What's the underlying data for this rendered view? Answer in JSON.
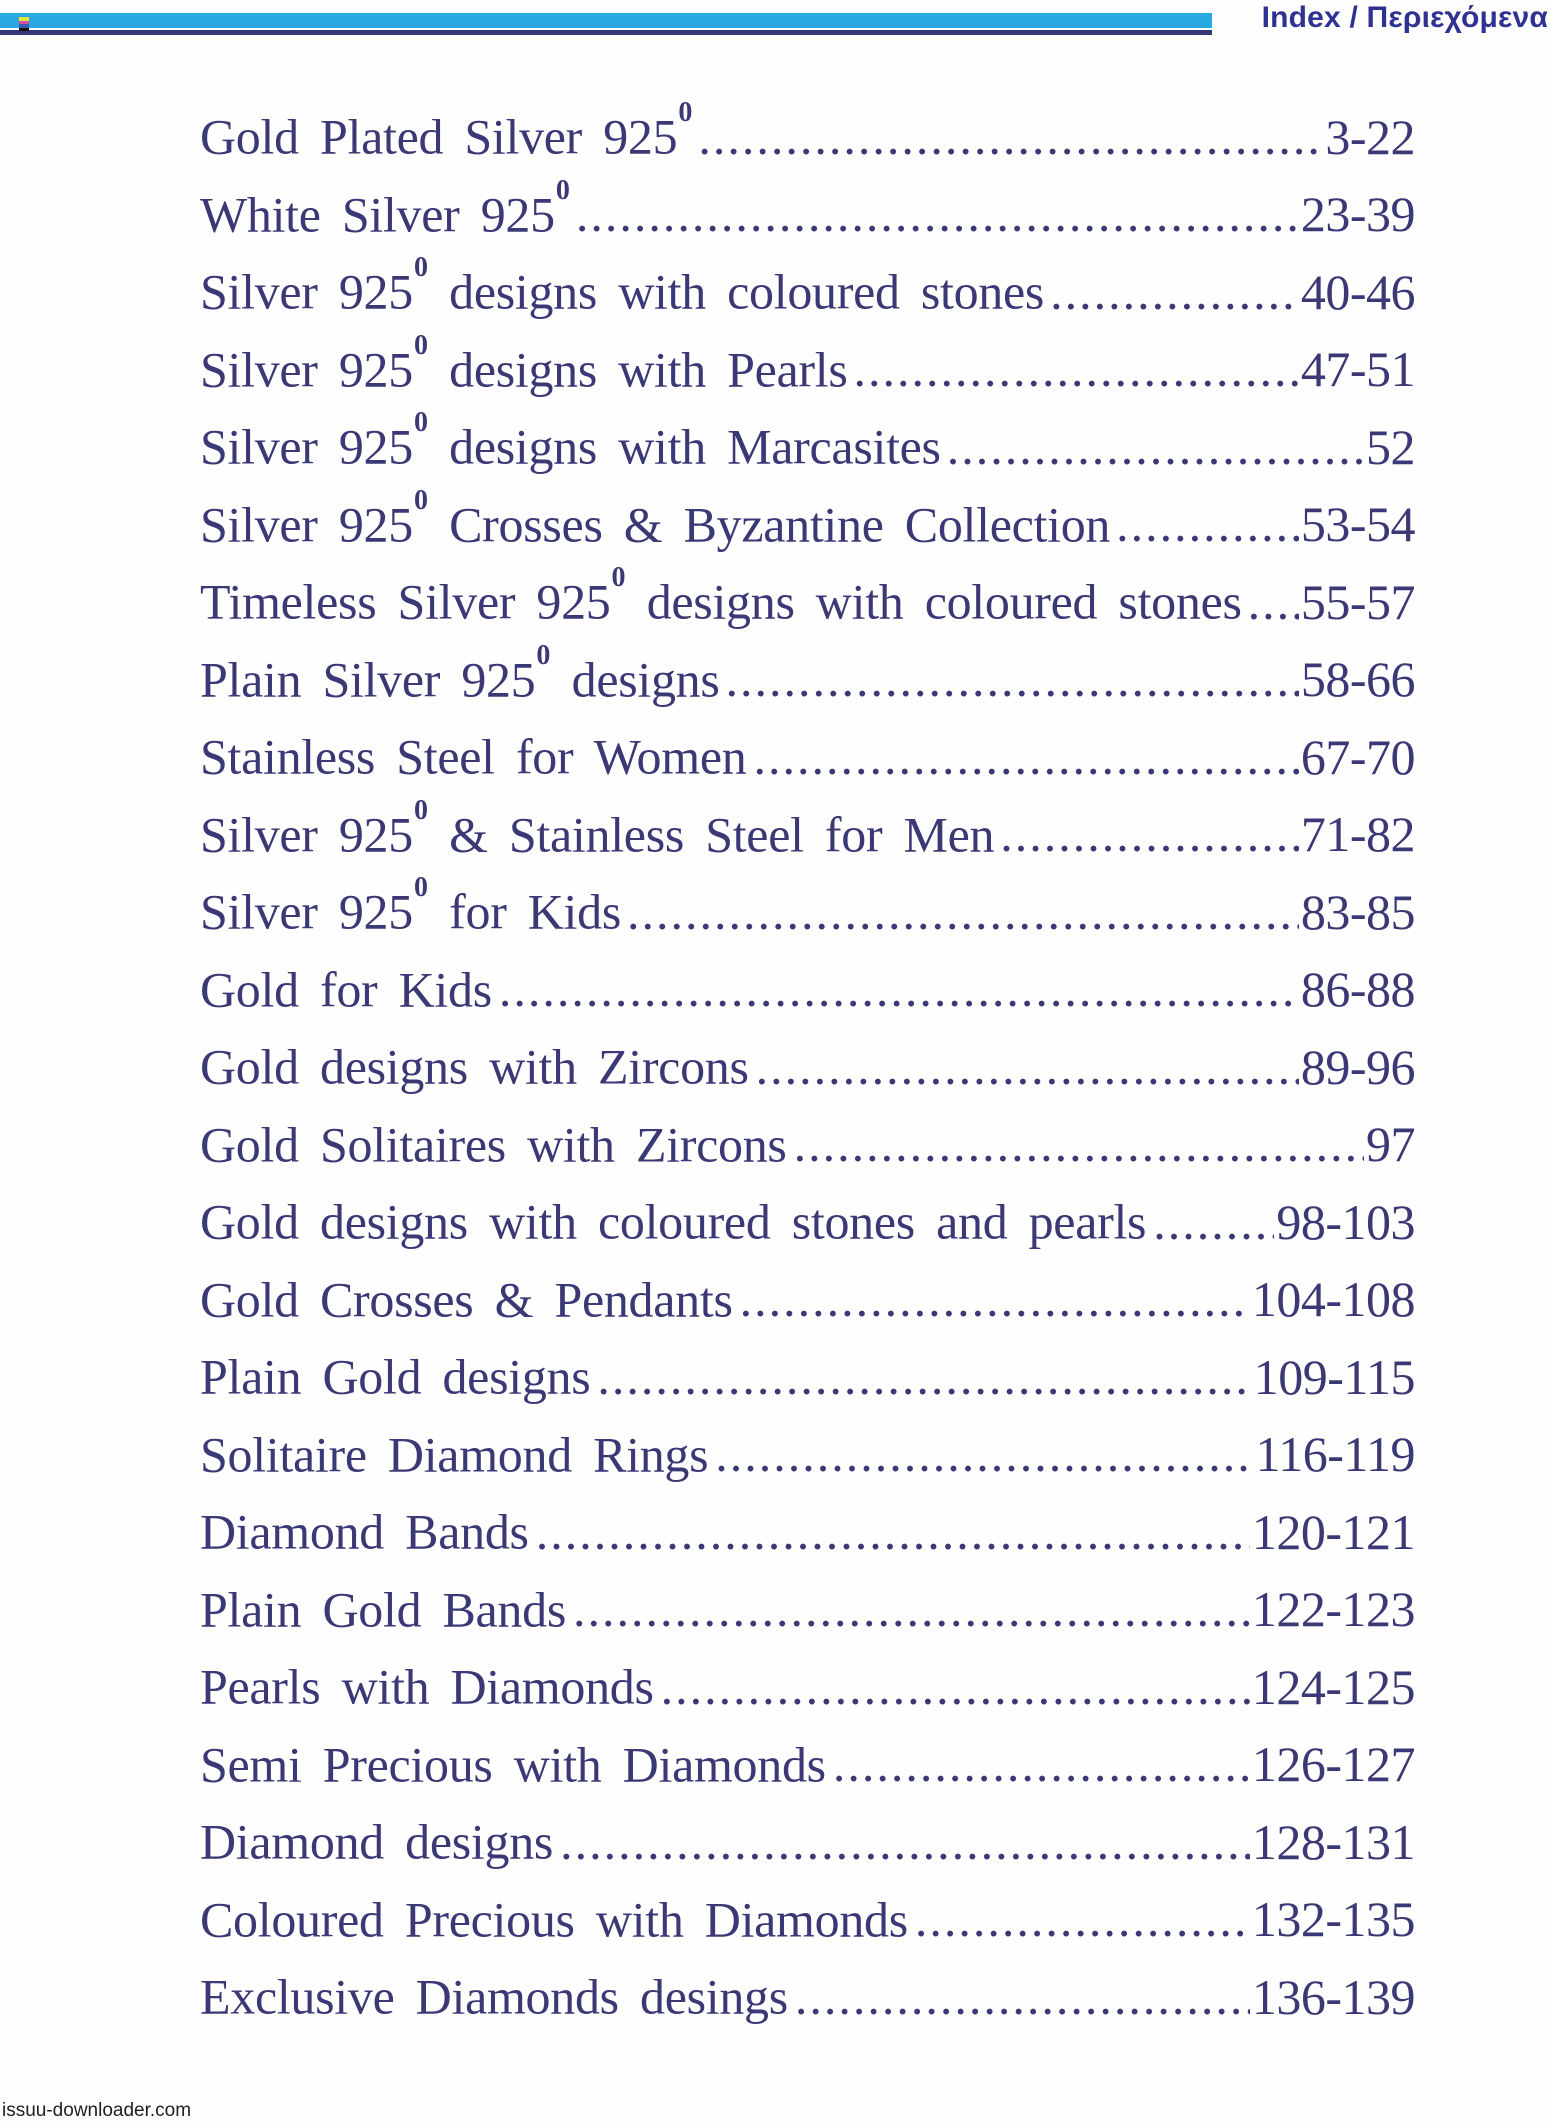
{
  "header": {
    "title": "Index / Περιεχόμενα"
  },
  "colors": {
    "cyan_bar": "#29a9e0",
    "navy_bar": "#333878",
    "title_text": "#2f3292",
    "toc_text": "#3a3875"
  },
  "registration_mark": {
    "name": "color-registration-mark",
    "stripe_colors": [
      "#e9e43b",
      "#d8509f",
      "#3b5bb0",
      "#141414"
    ]
  },
  "toc": {
    "items": [
      {
        "label": "Gold Plated Silver 925",
        "sup": "0",
        "label2": "",
        "pages": "3-22"
      },
      {
        "label": "White Silver 925",
        "sup": "0",
        "label2": "",
        "pages": "23-39"
      },
      {
        "label": "Silver 925",
        "sup": "0",
        "label2": " designs with coloured stones",
        "pages": "40-46"
      },
      {
        "label": "Silver 925",
        "sup": "0",
        "label2": " designs with Pearls",
        "pages": "47-51"
      },
      {
        "label": "Silver 925",
        "sup": "0",
        "label2": " designs with Marcasites",
        "pages": "52"
      },
      {
        "label": "Silver 925",
        "sup": "0",
        "label2": " Crosses & Byzantine Collection",
        "pages": "53-54"
      },
      {
        "label": "Timeless Silver 925",
        "sup": "0",
        "label2": " designs with coloured stones",
        "pages": "55-57"
      },
      {
        "label": "Plain Silver 925",
        "sup": "0",
        "label2": " designs",
        "pages": "58-66"
      },
      {
        "label": "Stainless Steel for Women",
        "sup": "",
        "label2": "",
        "pages": "67-70"
      },
      {
        "label": "Silver 925",
        "sup": "0",
        "label2": " & Stainless Steel for Men",
        "pages": "71-82"
      },
      {
        "label": "Silver 925",
        "sup": "0",
        "label2": " for Kids",
        "pages": "83-85"
      },
      {
        "label": "Gold for Kids",
        "sup": "",
        "label2": "",
        "pages": "86-88"
      },
      {
        "label": "Gold designs with Zircons",
        "sup": "",
        "label2": "",
        "pages": "89-96"
      },
      {
        "label": "Gold Solitaires with Zircons",
        "sup": "",
        "label2": "",
        "pages": "97"
      },
      {
        "label": "Gold designs with coloured stones and pearls",
        "sup": "",
        "label2": "",
        "pages": "98-103"
      },
      {
        "label": "Gold Crosses & Pendants",
        "sup": "",
        "label2": "",
        "pages": "104-108"
      },
      {
        "label": "Plain Gold designs",
        "sup": "",
        "label2": "",
        "pages": "109-115"
      },
      {
        "label": "Solitaire Diamond Rings",
        "sup": "",
        "label2": "",
        "pages": "116-119"
      },
      {
        "label": "Diamond Bands",
        "sup": "",
        "label2": "",
        "pages": "120-121"
      },
      {
        "label": "Plain Gold Bands",
        "sup": "",
        "label2": "",
        "pages": "122-123"
      },
      {
        "label": "Pearls with Diamonds",
        "sup": "",
        "label2": "",
        "pages": "124-125"
      },
      {
        "label": "Semi Precious with Diamonds",
        "sup": "",
        "label2": "",
        "pages": "126-127"
      },
      {
        "label": "Diamond designs",
        "sup": "",
        "label2": "",
        "pages": "128-131"
      },
      {
        "label": "Coloured Precious with Diamonds",
        "sup": "",
        "label2": "",
        "pages": "132-135"
      },
      {
        "label": "Exclusive Diamonds desings",
        "sup": "",
        "label2": "",
        "pages": "136-139"
      }
    ]
  },
  "footer": {
    "watermark": "issuu-downloader.com"
  }
}
